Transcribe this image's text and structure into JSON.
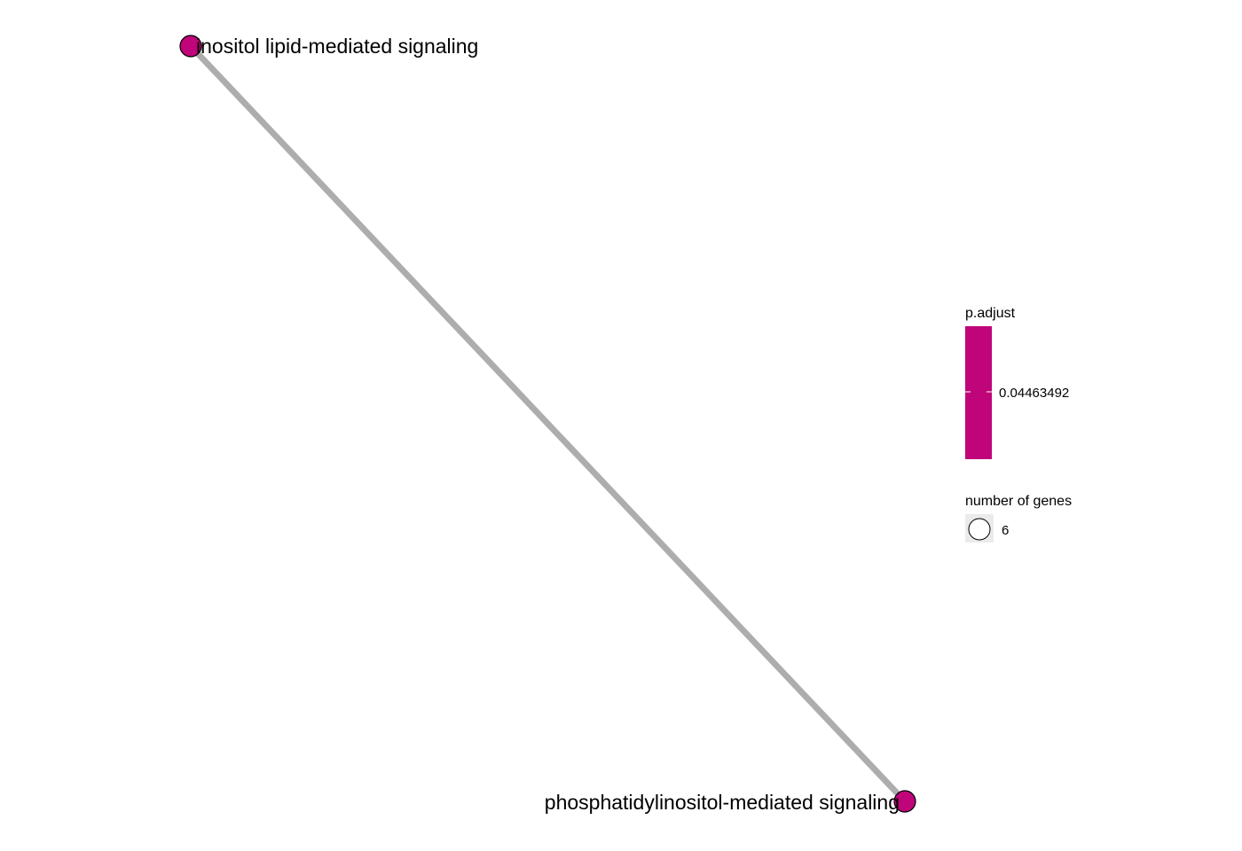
{
  "graph": {
    "nodes": [
      {
        "id": "n1",
        "label": "inositol lipid-mediated signaling",
        "genes": 6,
        "p_adjust": 0.04463492
      },
      {
        "id": "n2",
        "label": "phosphatidylinositol-mediated signaling",
        "genes": 6,
        "p_adjust": 0.04463492
      }
    ],
    "edges": [
      {
        "from": "n1",
        "to": "n2"
      }
    ]
  },
  "colors": {
    "node_fill": "#C0047A",
    "node_stroke": "#000000",
    "edge": "#ADADAD",
    "size_key_bg": "#EBEBEB"
  },
  "legend": {
    "color": {
      "title": "p.adjust",
      "tick_label": "0.04463492"
    },
    "size": {
      "title": "number of genes",
      "key_label": "6"
    }
  }
}
